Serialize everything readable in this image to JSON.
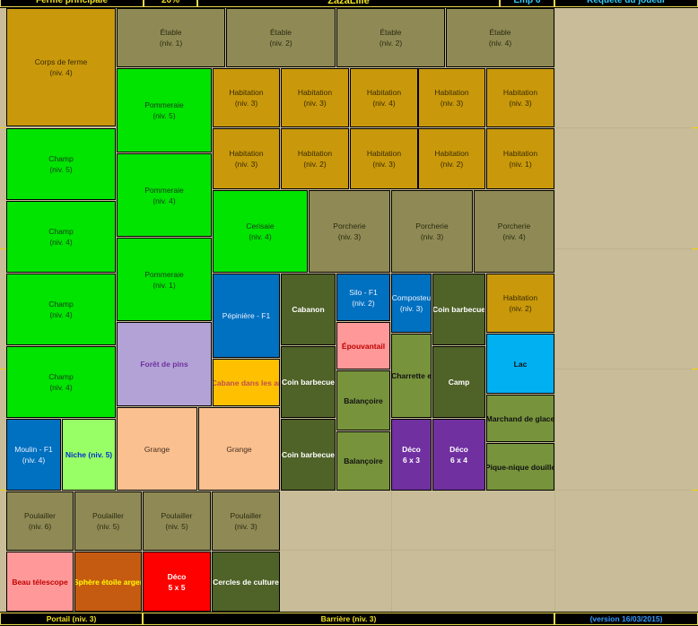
{
  "header": {
    "cells": [
      "Ferme principale",
      "20%",
      "ZazaLille",
      "Emp 6",
      "Requête du joueur"
    ]
  },
  "tiles": [
    {
      "lines": [
        "Corps de ferme",
        "(niv. 4)"
      ]
    },
    {
      "lines": [
        "Étable",
        "(niv. 1)"
      ]
    },
    {
      "lines": [
        "Étable",
        "(niv. 2)"
      ]
    },
    {
      "lines": [
        "Étable",
        "(niv. 2)"
      ]
    },
    {
      "lines": [
        "Étable",
        "(niv. 4)"
      ]
    },
    {
      "lines": [
        "Pommeraie",
        "(niv. 5)"
      ]
    },
    {
      "lines": [
        "Habitation",
        "(niv. 3)"
      ]
    },
    {
      "lines": [
        "Habitation",
        "(niv. 3)"
      ]
    },
    {
      "lines": [
        "Habitation",
        "(niv. 4)"
      ]
    },
    {
      "lines": [
        "Habitation",
        "(niv. 3)"
      ]
    },
    {
      "lines": [
        "Habitation",
        "(niv. 3)"
      ]
    },
    {
      "lines": [
        "Habitation",
        "(niv. 3)"
      ]
    },
    {
      "lines": [
        "Habitation",
        "(niv. 2)"
      ]
    },
    {
      "lines": [
        "Habitation",
        "(niv. 3)"
      ]
    },
    {
      "lines": [
        "Habitation",
        "(niv. 2)"
      ]
    },
    {
      "lines": [
        "Habitation",
        "(niv. 1)"
      ]
    },
    {
      "lines": [
        "Champ",
        "(niv. 5)"
      ]
    },
    {
      "lines": [
        "Champ",
        "(niv. 4)"
      ]
    },
    {
      "lines": [
        "Champ",
        "(niv. 4)"
      ]
    },
    {
      "lines": [
        "Champ",
        "(niv. 4)"
      ]
    },
    {
      "lines": [
        "Pommeraie",
        "(niv. 4)"
      ]
    },
    {
      "lines": [
        "Pommeraie",
        "(niv. 1)"
      ]
    },
    {
      "lines": [
        "Cerisaie",
        "(niv. 4)"
      ]
    },
    {
      "lines": [
        "Porcherie",
        "(niv. 3)"
      ]
    },
    {
      "lines": [
        "Porcherie",
        "(niv. 3)"
      ]
    },
    {
      "lines": [
        "Porcherie",
        "(niv. 4)"
      ]
    },
    {
      "lines": [
        "Forêt de pins"
      ]
    },
    {
      "lines": [
        "Pépinière - F1"
      ]
    },
    {
      "lines": [
        "Cabane dans les ar"
      ]
    },
    {
      "lines": [
        "Cabanon"
      ]
    },
    {
      "lines": [
        "Coin barbecue"
      ]
    },
    {
      "lines": [
        "Coin barbecue"
      ]
    },
    {
      "lines": [
        "Silo - F1",
        "(niv. 2)"
      ]
    },
    {
      "lines": [
        "Épouvantail"
      ]
    },
    {
      "lines": [
        "Balançoire"
      ]
    },
    {
      "lines": [
        "Balançoire"
      ]
    },
    {
      "lines": [
        "Composteu",
        "(niv. 3)"
      ]
    },
    {
      "lines": [
        "Charrette e"
      ]
    },
    {
      "lines": [
        "Déco",
        "6 x 3"
      ]
    },
    {
      "lines": [
        "Coin barbecue"
      ]
    },
    {
      "lines": [
        "Camp"
      ]
    },
    {
      "lines": [
        "Déco",
        "6 x 4"
      ]
    },
    {
      "lines": [
        "Habitation",
        "(niv. 2)"
      ]
    },
    {
      "lines": [
        "Lac"
      ]
    },
    {
      "lines": [
        "Marchand de glace"
      ]
    },
    {
      "lines": [
        "Pique-nique douille"
      ]
    },
    {
      "lines": [
        "Moulin - F1",
        "(niv. 4)"
      ]
    },
    {
      "lines": [
        "Niche (niv. 5)"
      ]
    },
    {
      "lines": [
        "Grange"
      ]
    },
    {
      "lines": [
        "Grange"
      ]
    },
    {
      "lines": [
        "Poulailler",
        "(niv. 6)"
      ]
    },
    {
      "lines": [
        "Poulailler",
        "(niv. 5)"
      ]
    },
    {
      "lines": [
        "Poulailler",
        "(niv. 5)"
      ]
    },
    {
      "lines": [
        "Poulailler",
        "(niv. 3)"
      ]
    },
    {
      "lines": [
        "Beau télescope"
      ]
    },
    {
      "lines": [
        "Sphère étoile arger"
      ]
    },
    {
      "lines": [
        "Déco",
        "5 x 5"
      ]
    },
    {
      "lines": [
        "Cercles de culture"
      ]
    }
  ],
  "footer": {
    "cells": [
      "Portail (niv. 3)",
      "Barrière (niv. 3)",
      "(version 16/03/2015)"
    ]
  }
}
